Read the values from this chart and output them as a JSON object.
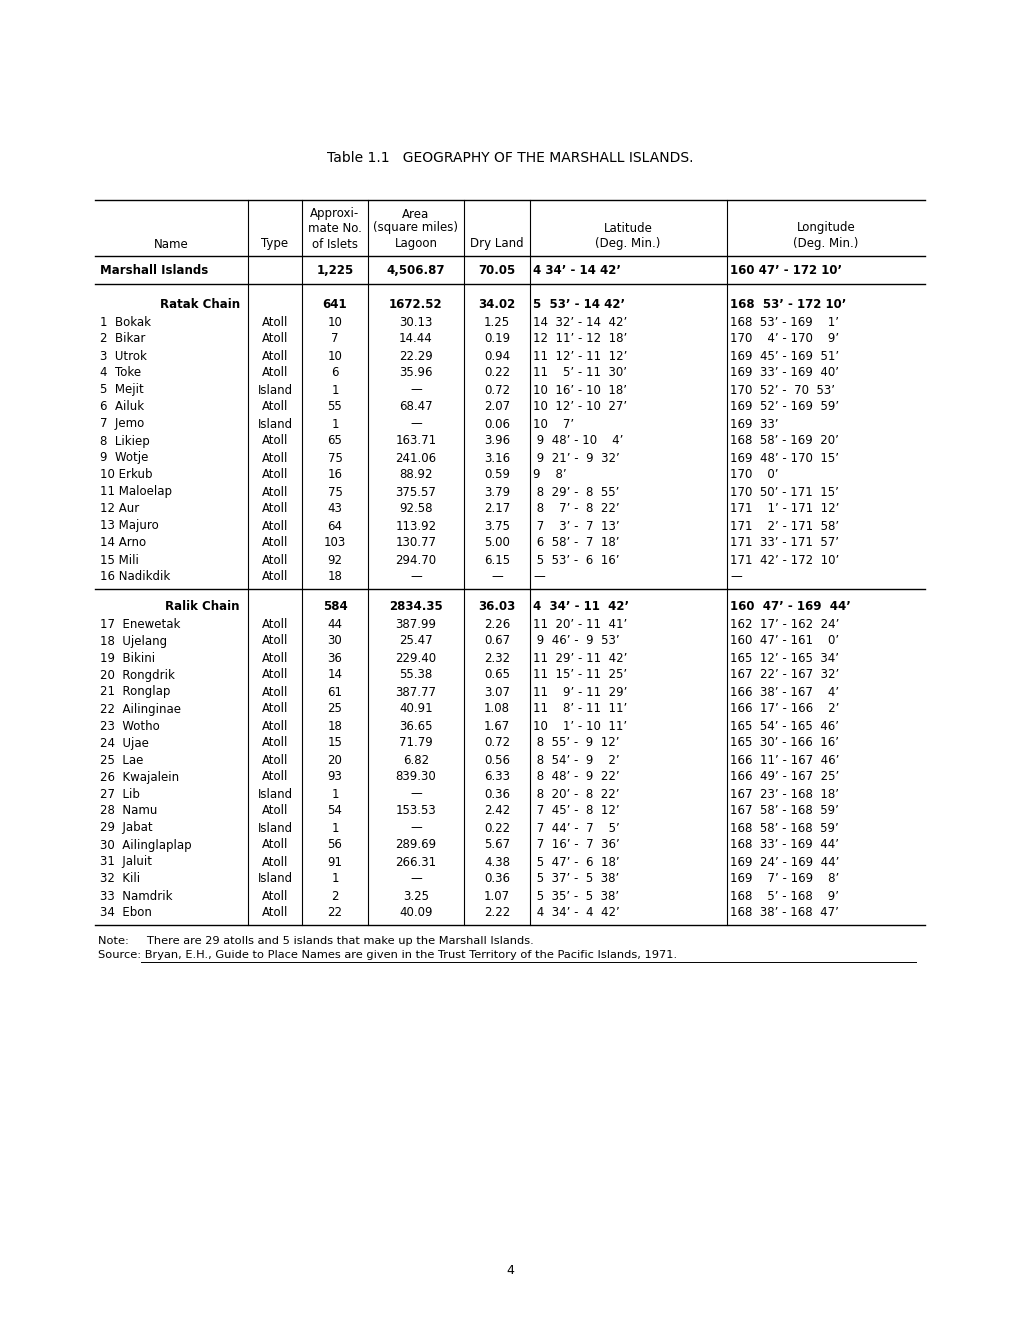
{
  "title": "Table 1.1   GEOGRAPHY OF THE MARSHALL ISLANDS.",
  "bg_color": "#ffffff",
  "summary_row": [
    "Marshall Islands",
    "",
    "1,225",
    "4,506.87",
    "70.05",
    "4 34’ - 14 42’",
    "160 47’ - 172 10’"
  ],
  "ratak_header": [
    "Ratak Chain",
    "",
    "641",
    "1672.52",
    "34.02",
    "5  53’ - 14 42’",
    "168  53’ - 172 10’"
  ],
  "ratak_rows": [
    [
      "1  Bokak",
      "Atoll",
      "10",
      "30.13",
      "1.25",
      "14  32’ - 14  42’",
      "168  53’ - 169    1’"
    ],
    [
      "2  Bikar",
      "Atoll",
      "7",
      "14.44",
      "0.19",
      "12  11’ - 12  18’",
      "170    4’ - 170    9’"
    ],
    [
      "3  Utrok",
      "Atoll",
      "10",
      "22.29",
      "0.94",
      "11  12’ - 11  12’",
      "169  45’ - 169  51’"
    ],
    [
      "4  Toke",
      "Atoll",
      "6",
      "35.96",
      "0.22",
      "11    5’ - 11  30’",
      "169  33’ - 169  40’"
    ],
    [
      "5  Mejit",
      "Island",
      "1",
      "—",
      "0.72",
      "10  16’ - 10  18’",
      "170  52’ -  70  53’"
    ],
    [
      "6  Ailuk",
      "Atoll",
      "55",
      "68.47",
      "2.07",
      "10  12’ - 10  27’",
      "169  52’ - 169  59’"
    ],
    [
      "7  Jemo",
      "Island",
      "1",
      "—",
      "0.06",
      "10    7’",
      "169  33’"
    ],
    [
      "8  Likiep",
      "Atoll",
      "65",
      "163.71",
      "3.96",
      " 9  48’ - 10    4’",
      "168  58’ - 169  20’"
    ],
    [
      "9  Wotje",
      "Atoll",
      "75",
      "241.06",
      "3.16",
      " 9  21’ -  9  32’",
      "169  48’ - 170  15’"
    ],
    [
      "10 Erkub",
      "Atoll",
      "16",
      "88.92",
      "0.59",
      "9    8’",
      "170    0’"
    ],
    [
      "11 Maloelap",
      "Atoll",
      "75",
      "375.57",
      "3.79",
      " 8  29’ -  8  55’",
      "170  50’ - 171  15’"
    ],
    [
      "12 Aur",
      "Atoll",
      "43",
      "92.58",
      "2.17",
      " 8    7’ -  8  22’",
      "171    1’ - 171  12’"
    ],
    [
      "13 Majuro",
      "Atoll",
      "64",
      "113.92",
      "3.75",
      " 7    3’ -  7  13’",
      "171    2’ - 171  58’"
    ],
    [
      "14 Arno",
      "Atoll",
      "103",
      "130.77",
      "5.00",
      " 6  58’ -  7  18’",
      "171  33’ - 171  57’"
    ],
    [
      "15 Mili",
      "Atoll",
      "92",
      "294.70",
      "6.15",
      " 5  53’ -  6  16’",
      "171  42’ - 172  10’"
    ],
    [
      "16 Nadikdik",
      "Atoll",
      "18",
      "—",
      "—",
      "—",
      "—"
    ]
  ],
  "ralik_header": [
    "Ralik Chain",
    "",
    "584",
    "2834.35",
    "36.03",
    "4  34’ - 11  42’",
    "160  47’ - 169  44’"
  ],
  "ralik_rows": [
    [
      "17  Enewetak",
      "Atoll",
      "44",
      "387.99",
      "2.26",
      "11  20’ - 11  41’",
      "162  17’ - 162  24’"
    ],
    [
      "18  Ujelang",
      "Atoll",
      "30",
      "25.47",
      "0.67",
      " 9  46’ -  9  53’",
      "160  47’ - 161    0’"
    ],
    [
      "19  Bikini",
      "Atoll",
      "36",
      "229.40",
      "2.32",
      "11  29’ - 11  42’",
      "165  12’ - 165  34’"
    ],
    [
      "20  Rongdrik",
      "Atoll",
      "14",
      "55.38",
      "0.65",
      "11  15’ - 11  25’",
      "167  22’ - 167  32’"
    ],
    [
      "21  Ronglap",
      "Atoll",
      "61",
      "387.77",
      "3.07",
      "11    9’ - 11  29’",
      "166  38’ - 167    4’"
    ],
    [
      "22  Ailinginae",
      "Atoll",
      "25",
      "40.91",
      "1.08",
      "11    8’ - 11  11’",
      "166  17’ - 166    2’"
    ],
    [
      "23  Wotho",
      "Atoll",
      "18",
      "36.65",
      "1.67",
      "10    1’ - 10  11’",
      "165  54’ - 165  46’"
    ],
    [
      "24  Ujae",
      "Atoll",
      "15",
      "71.79",
      "0.72",
      " 8  55’ -  9  12’",
      "165  30’ - 166  16’"
    ],
    [
      "25  Lae",
      "Atoll",
      "20",
      "6.82",
      "0.56",
      " 8  54’ -  9    2’",
      "166  11’ - 167  46’"
    ],
    [
      "26  Kwajalein",
      "Atoll",
      "93",
      "839.30",
      "6.33",
      " 8  48’ -  9  22’",
      "166  49’ - 167  25’"
    ],
    [
      "27  Lib",
      "Island",
      "1",
      "—",
      "0.36",
      " 8  20’ -  8  22’",
      "167  23’ - 168  18’"
    ],
    [
      "28  Namu",
      "Atoll",
      "54",
      "153.53",
      "2.42",
      " 7  45’ -  8  12’",
      "167  58’ - 168  59’"
    ],
    [
      "29  Jabat",
      "Island",
      "1",
      "—",
      "0.22",
      " 7  44’ -  7    5’",
      "168  58’ - 168  59’"
    ],
    [
      "30  Ailinglaplap",
      "Atoll",
      "56",
      "289.69",
      "5.67",
      " 7  16’ -  7  36’",
      "168  33’ - 169  44’"
    ],
    [
      "31  Jaluit",
      "Atoll",
      "91",
      "266.31",
      "4.38",
      " 5  47’ -  6  18’",
      "169  24’ - 169  44’"
    ],
    [
      "32  Kili",
      "Island",
      "1",
      "—",
      "0.36",
      " 5  37’ -  5  38’",
      "169    7’ - 169    8’"
    ],
    [
      "33  Namdrik",
      "Atoll",
      "2",
      "3.25",
      "1.07",
      " 5  35’ -  5  38’",
      "168    5’ - 168    9’"
    ],
    [
      "34  Ebon",
      "Atoll",
      "22",
      "40.09",
      "2.22",
      " 4  34’ -  4  42’",
      "168  38’ - 168  47’"
    ]
  ],
  "note_line1": "Note:     There are 29 atolls and 5 islands that make up the Marshall Islands.",
  "note_line2": "Source: Bryan, E.H., Guide to Place Names are given in the Trust Territory of the Pacific Islands, 1971.",
  "page_number": "4"
}
